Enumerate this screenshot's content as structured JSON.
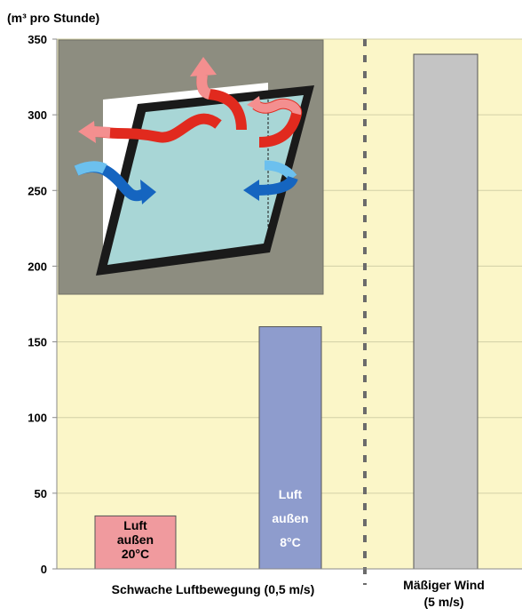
{
  "chart_data": {
    "type": "bar",
    "ylabel": "(m³ pro Stunde)",
    "ylim": [
      0,
      350
    ],
    "yticks": [
      0,
      50,
      100,
      150,
      200,
      250,
      300,
      350
    ],
    "grid": true,
    "categories": [
      "Luft außen 20°C",
      "Luft außen 8°C",
      "Mäßiger Wind"
    ],
    "values": [
      35,
      160,
      340
    ],
    "bar_labels": [
      [
        "Luft",
        "außen",
        "20°C"
      ],
      [
        "Luft",
        "außen",
        "8°C"
      ],
      []
    ],
    "group_labels": [
      [
        "Schwache Luftbewegung (0,5 m/s)"
      ],
      [
        "Mäßiger Wind",
        "(5 m/s)"
      ]
    ],
    "colors": {
      "background": "#fbf6c8",
      "gridline": "#d2cfa6",
      "axis": "#8a8a8a",
      "separator": "#6b6b6b",
      "bar_warm": "#f09a9e",
      "bar_cool": "#8e9ccd",
      "bar_wind": "#c4c4c4",
      "label_dark": "#000000",
      "label_light": "#ffffff",
      "inset_background": "#8d8d80",
      "window_frame": "#1a1a1a",
      "window_glass": "#a8d6d6",
      "arrow_warm": "#e12a1e",
      "arrow_warm_light": "#f48f8f",
      "arrow_cool": "#1565c0",
      "arrow_cool_light": "#6cc0ee"
    },
    "illustration": "tilted-window-airflow-icon"
  }
}
